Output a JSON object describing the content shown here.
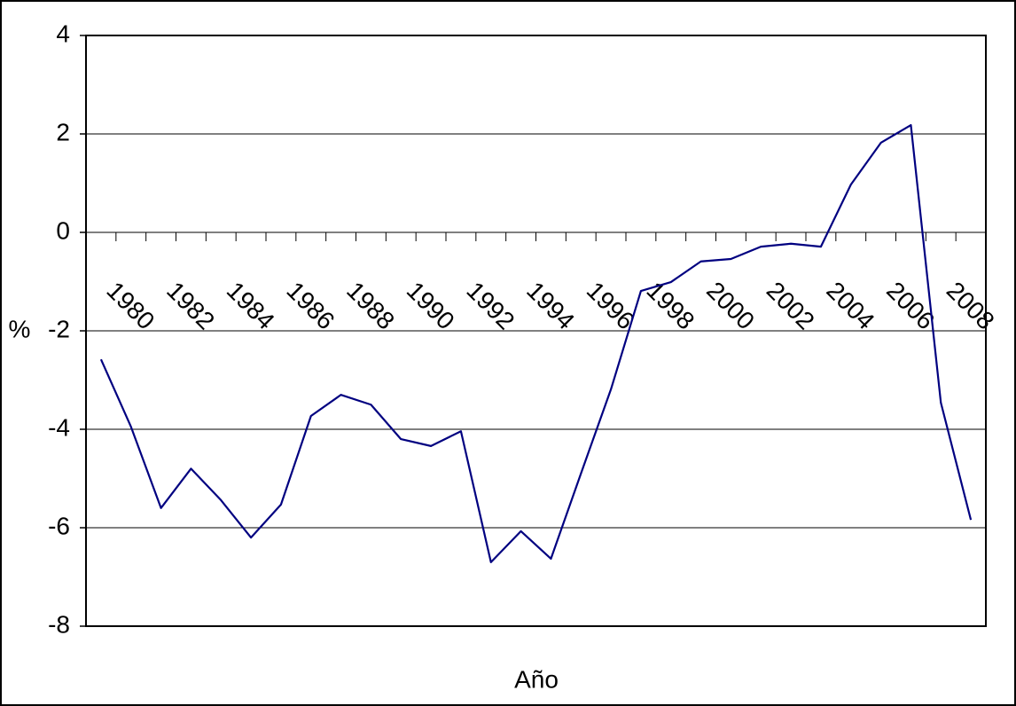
{
  "chart_data": {
    "type": "line",
    "x_label": "Año",
    "y_label": "%",
    "categories": [
      "1980",
      null,
      "1982",
      null,
      "1984",
      null,
      "1986",
      null,
      "1988",
      null,
      "1990",
      null,
      "1992",
      null,
      "1994",
      null,
      "1996",
      null,
      "1998",
      null,
      "2000",
      null,
      "2002",
      null,
      "2004",
      null,
      "2006",
      null,
      "2008",
      null
    ],
    "series": [
      {
        "color": "#000080",
        "values": [
          -2.58,
          -3.95,
          -5.6,
          -4.8,
          -5.44,
          -6.2,
          -5.53,
          -3.73,
          -3.3,
          -3.5,
          -4.2,
          -4.34,
          -4.04,
          -6.7,
          -6.07,
          -6.63,
          -4.9,
          -3.19,
          -1.19,
          -1.01,
          -0.59,
          -0.54,
          -0.29,
          -0.23,
          -0.29,
          0.97,
          1.82,
          2.18,
          -3.46,
          -5.84
        ]
      }
    ],
    "ylim": [
      -8,
      4
    ],
    "yticks": [
      -8,
      -6,
      -4,
      -2,
      0,
      2,
      4
    ],
    "grid": true
  }
}
